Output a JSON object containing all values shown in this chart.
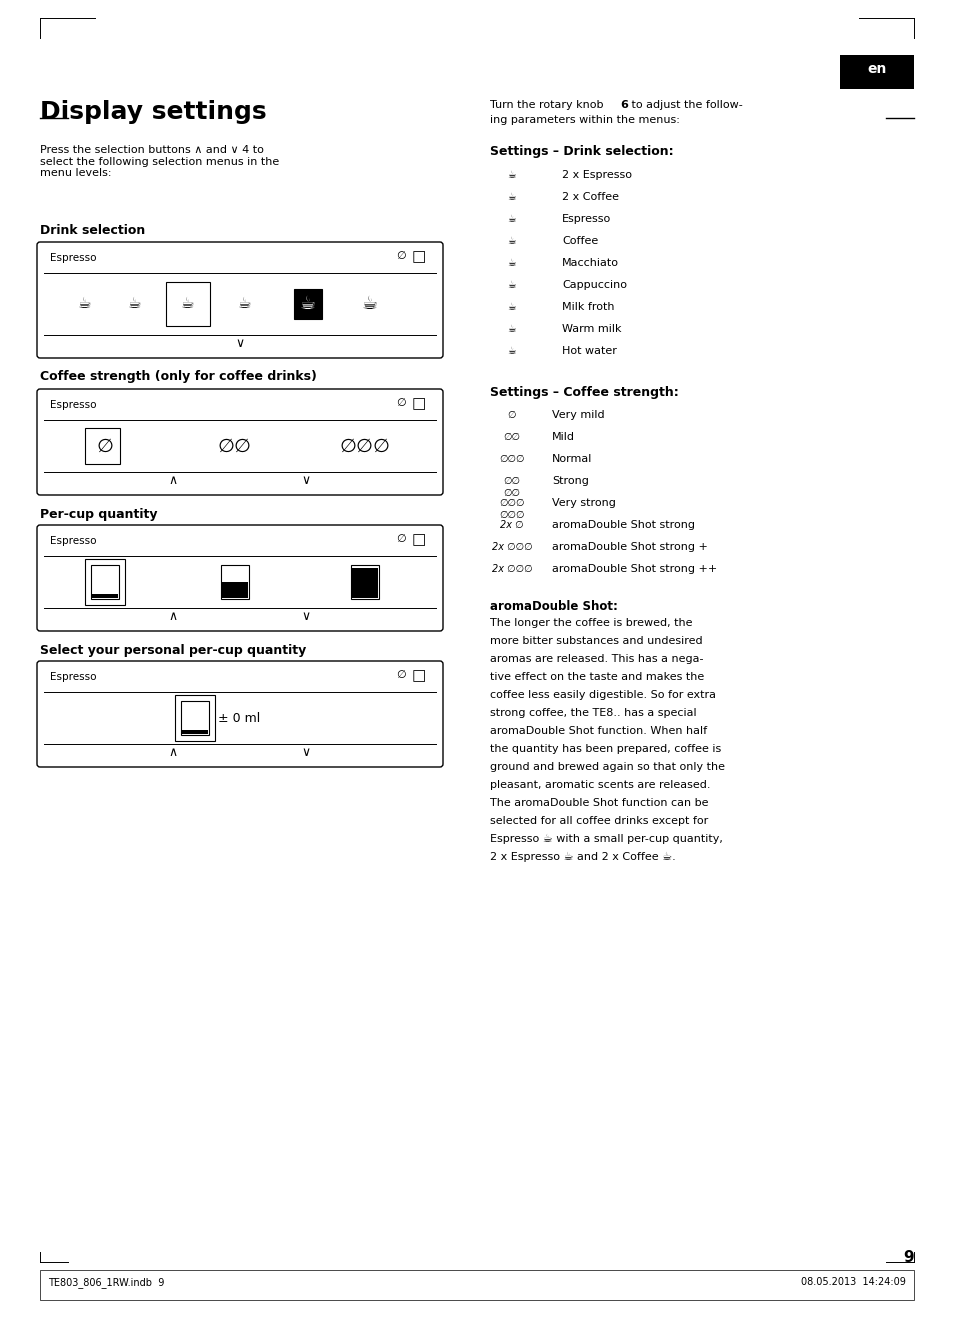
{
  "bg_color": "#ffffff",
  "page_title": "Display settings",
  "en_label": "en",
  "intro_left": "Press the selection buttons ∧ and ∨ 4 to\nselect the following selection menus in the\nmenu levels:",
  "intro_right_part1": "Turn the rotary knob ",
  "intro_right_bold": "6",
  "intro_right_part2": " to adjust the follow-\ning parameters within the menus:",
  "section1_title": "Drink selection",
  "section2_title": "Coffee strength (only for coffee drinks)",
  "section3_title": "Per-cup quantity",
  "section4_title": "Select your personal per-cup quantity",
  "right_section1_title": "Settings – Drink selection:",
  "right_section2_title": "Settings – Coffee strength:",
  "right_section3_title": "aromaDouble Shot:",
  "drink_items": [
    "2 x Espresso",
    "2 x Coffee",
    "Espresso",
    "Coffee",
    "Macchiato",
    "Cappuccino",
    "Milk froth",
    "Warm milk",
    "Hot water"
  ],
  "strength_items": [
    "Very mild",
    "Mild",
    "Normal",
    "Strong",
    "Very strong",
    "aromaDouble Shot strong",
    "aromaDouble Shot strong +",
    "aromaDouble Shot strong ++"
  ],
  "aroma_text_lines": [
    "The longer the coffee is brewed, the",
    "more bitter substances and undesired",
    "aromas are released. This has a nega-",
    "tive effect on the taste and makes the",
    "coffee less easily digestible. So for extra",
    "strong coffee, the TE8.. has a special",
    "aromaDouble Shot function. When half",
    "the quantity has been prepared, coffee is",
    "ground and brewed again so that only the",
    "pleasant, aromatic scents are released.",
    "The aromaDouble Shot function can be",
    "selected for all coffee drinks except for",
    "Espresso ☕ with a small per-cup quantity,",
    "2 x Espresso ☕ and 2 x Coffee ☕."
  ],
  "page_number": "9",
  "footer_left": "TE803_806_1RW.indb  9",
  "footer_right": "08.05.2013  14:24:09"
}
